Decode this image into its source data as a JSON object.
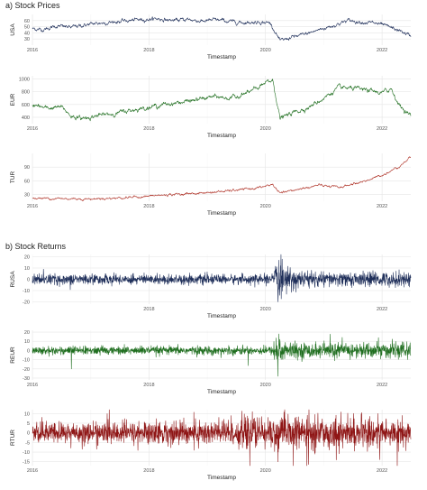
{
  "figure": {
    "section_a_title": "a) Stock Prices",
    "section_b_title": "b) Stock Returns"
  },
  "chart_data": [
    {
      "type": "line",
      "section": "a",
      "ylabel": "USA",
      "xlabel": "Timestamp",
      "color": "#1f2f5a",
      "xlim": [
        "2016-01-01",
        "2022-06-30"
      ],
      "ylim": [
        20,
        70
      ],
      "yticks": [
        30,
        40,
        50,
        60
      ],
      "xticks": [
        "2016",
        "2018",
        "2020",
        "2022"
      ],
      "anchors": [
        [
          "2016-01-01",
          47
        ],
        [
          "2016-03-01",
          45
        ],
        [
          "2016-06-01",
          51
        ],
        [
          "2016-09-01",
          49
        ],
        [
          "2016-12-01",
          53
        ],
        [
          "2017-03-01",
          56
        ],
        [
          "2017-06-01",
          58
        ],
        [
          "2017-09-01",
          60
        ],
        [
          "2017-12-01",
          62
        ],
        [
          "2018-03-01",
          63
        ],
        [
          "2018-06-01",
          60
        ],
        [
          "2018-09-01",
          62
        ],
        [
          "2018-12-01",
          59
        ],
        [
          "2019-03-01",
          61
        ],
        [
          "2019-06-01",
          58
        ],
        [
          "2019-09-01",
          57
        ],
        [
          "2019-12-01",
          58
        ],
        [
          "2020-02-01",
          56
        ],
        [
          "2020-03-10",
          38
        ],
        [
          "2020-04-01",
          26
        ],
        [
          "2020-06-01",
          32
        ],
        [
          "2020-09-01",
          37
        ],
        [
          "2020-12-01",
          45
        ],
        [
          "2021-03-01",
          52
        ],
        [
          "2021-06-01",
          60
        ],
        [
          "2021-09-01",
          58
        ],
        [
          "2021-12-01",
          55
        ],
        [
          "2022-03-01",
          48
        ],
        [
          "2022-05-01",
          42
        ],
        [
          "2022-06-30",
          35
        ]
      ],
      "noise": 1.6
    },
    {
      "type": "line",
      "section": "a",
      "ylabel": "EUR",
      "xlabel": "Timestamp",
      "color": "#1f6e1f",
      "xlim": [
        "2016-01-01",
        "2022-06-30"
      ],
      "ylim": [
        300,
        1050
      ],
      "yticks": [
        400,
        600,
        800,
        1000
      ],
      "xticks": [
        "2016",
        "2018",
        "2020",
        "2022"
      ],
      "anchors": [
        [
          "2016-01-01",
          590
        ],
        [
          "2016-04-01",
          540
        ],
        [
          "2016-07-01",
          560
        ],
        [
          "2016-09-01",
          420
        ],
        [
          "2016-11-01",
          380
        ],
        [
          "2017-02-01",
          420
        ],
        [
          "2017-06-01",
          460
        ],
        [
          "2017-10-01",
          520
        ],
        [
          "2018-01-01",
          560
        ],
        [
          "2018-06-01",
          620
        ],
        [
          "2018-10-01",
          660
        ],
        [
          "2019-02-01",
          720
        ],
        [
          "2019-06-01",
          700
        ],
        [
          "2019-10-01",
          800
        ],
        [
          "2020-01-01",
          930
        ],
        [
          "2020-02-15",
          980
        ],
        [
          "2020-03-15",
          620
        ],
        [
          "2020-04-01",
          380
        ],
        [
          "2020-07-01",
          480
        ],
        [
          "2020-10-01",
          560
        ],
        [
          "2021-01-01",
          700
        ],
        [
          "2021-04-01",
          860
        ],
        [
          "2021-07-01",
          850
        ],
        [
          "2021-10-01",
          820
        ],
        [
          "2022-01-01",
          780
        ],
        [
          "2022-03-01",
          850
        ],
        [
          "2022-04-15",
          600
        ],
        [
          "2022-06-30",
          420
        ]
      ],
      "noise": 18
    },
    {
      "type": "line",
      "section": "a",
      "ylabel": "TUR",
      "xlabel": "Timestamp",
      "color": "#b0352a",
      "xlim": [
        "2016-01-01",
        "2022-06-30"
      ],
      "ylim": [
        15,
        120
      ],
      "yticks": [
        30,
        60,
        90
      ],
      "xticks": [
        "2016",
        "2018",
        "2020",
        "2022"
      ],
      "anchors": [
        [
          "2016-01-01",
          22
        ],
        [
          "2016-06-01",
          21
        ],
        [
          "2017-01-01",
          20
        ],
        [
          "2017-06-01",
          22
        ],
        [
          "2018-01-01",
          26
        ],
        [
          "2018-06-01",
          30
        ],
        [
          "2018-12-01",
          33
        ],
        [
          "2019-06-01",
          38
        ],
        [
          "2019-12-01",
          45
        ],
        [
          "2020-02-15",
          52
        ],
        [
          "2020-04-01",
          32
        ],
        [
          "2020-08-01",
          42
        ],
        [
          "2020-12-01",
          50
        ],
        [
          "2021-04-01",
          45
        ],
        [
          "2021-08-01",
          55
        ],
        [
          "2021-12-01",
          68
        ],
        [
          "2022-03-01",
          82
        ],
        [
          "2022-05-01",
          95
        ],
        [
          "2022-06-30",
          112
        ]
      ],
      "noise": 1.4
    },
    {
      "type": "line",
      "section": "b",
      "ylabel": "RUSA",
      "xlabel": "Timestamp",
      "color": "#1f2f5a",
      "xlim": [
        "2016-01-01",
        "2022-06-30"
      ],
      "ylim": [
        -22,
        22
      ],
      "yticks": [
        -20,
        -10,
        0,
        10,
        20
      ],
      "xticks": [
        "2018",
        "2020",
        "2022"
      ],
      "vol": [
        [
          "2016-01-01",
          2.2
        ],
        [
          "2020-02-15",
          2.0
        ],
        [
          "2020-03-15",
          9
        ],
        [
          "2020-05-01",
          5
        ],
        [
          "2021-01-01",
          3
        ],
        [
          "2022-06-30",
          3.2
        ]
      ],
      "spikes": [
        [
          "2016-03-10",
          9
        ],
        [
          "2020-03-20",
          -20
        ],
        [
          "2020-03-25",
          17
        ],
        [
          "2020-04-05",
          12
        ]
      ]
    },
    {
      "type": "line",
      "section": "b",
      "ylabel": "REUR",
      "xlabel": "Timestamp",
      "color": "#1f6e1f",
      "xlim": [
        "2016-01-01",
        "2022-06-30"
      ],
      "ylim": [
        -32,
        22
      ],
      "yticks": [
        -30,
        -20,
        -10,
        0,
        10,
        20
      ],
      "xticks": [
        "2016",
        "2018",
        "2020",
        "2022"
      ],
      "vol": [
        [
          "2016-01-01",
          2.2
        ],
        [
          "2020-02-15",
          2.2
        ],
        [
          "2020-03-15",
          9
        ],
        [
          "2020-06-01",
          4
        ],
        [
          "2022-06-30",
          4
        ]
      ],
      "spikes": [
        [
          "2016-09-01",
          -20
        ],
        [
          "2020-03-18",
          -28
        ],
        [
          "2020-03-25",
          18
        ],
        [
          "2021-12-10",
          14
        ]
      ]
    },
    {
      "type": "line",
      "section": "b",
      "ylabel": "RTUR",
      "xlabel": "Timestamp",
      "color": "#8f1616",
      "xlim": [
        "2016-01-01",
        "2022-06-30"
      ],
      "ylim": [
        -17,
        12
      ],
      "yticks": [
        -15,
        -10,
        -5,
        0,
        5,
        10
      ],
      "xticks": [
        "2016",
        "2018",
        "2020",
        "2022"
      ],
      "vol": [
        [
          "2016-01-01",
          2.6
        ],
        [
          "2018-06-01",
          3
        ],
        [
          "2020-03-15",
          4.2
        ],
        [
          "2022-06-30",
          3.6
        ]
      ],
      "spikes": [
        [
          "2019-10-10",
          11
        ],
        [
          "2020-03-18",
          -15
        ],
        [
          "2021-03-20",
          -14
        ],
        [
          "2021-12-05",
          10
        ]
      ]
    }
  ]
}
